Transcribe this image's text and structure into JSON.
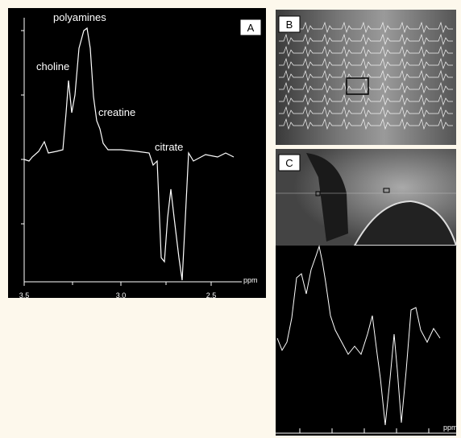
{
  "panels": [
    {
      "label": "A",
      "annotations": [
        "polyamines",
        "choline",
        "creatine",
        "citrate"
      ],
      "x_axis": {
        "ticks": [
          "3.5",
          "3.0",
          "2.5"
        ],
        "unit": "ppm"
      }
    },
    {
      "label": "B"
    },
    {
      "label": "C",
      "x_axis": {
        "unit": "ppm"
      }
    }
  ]
}
